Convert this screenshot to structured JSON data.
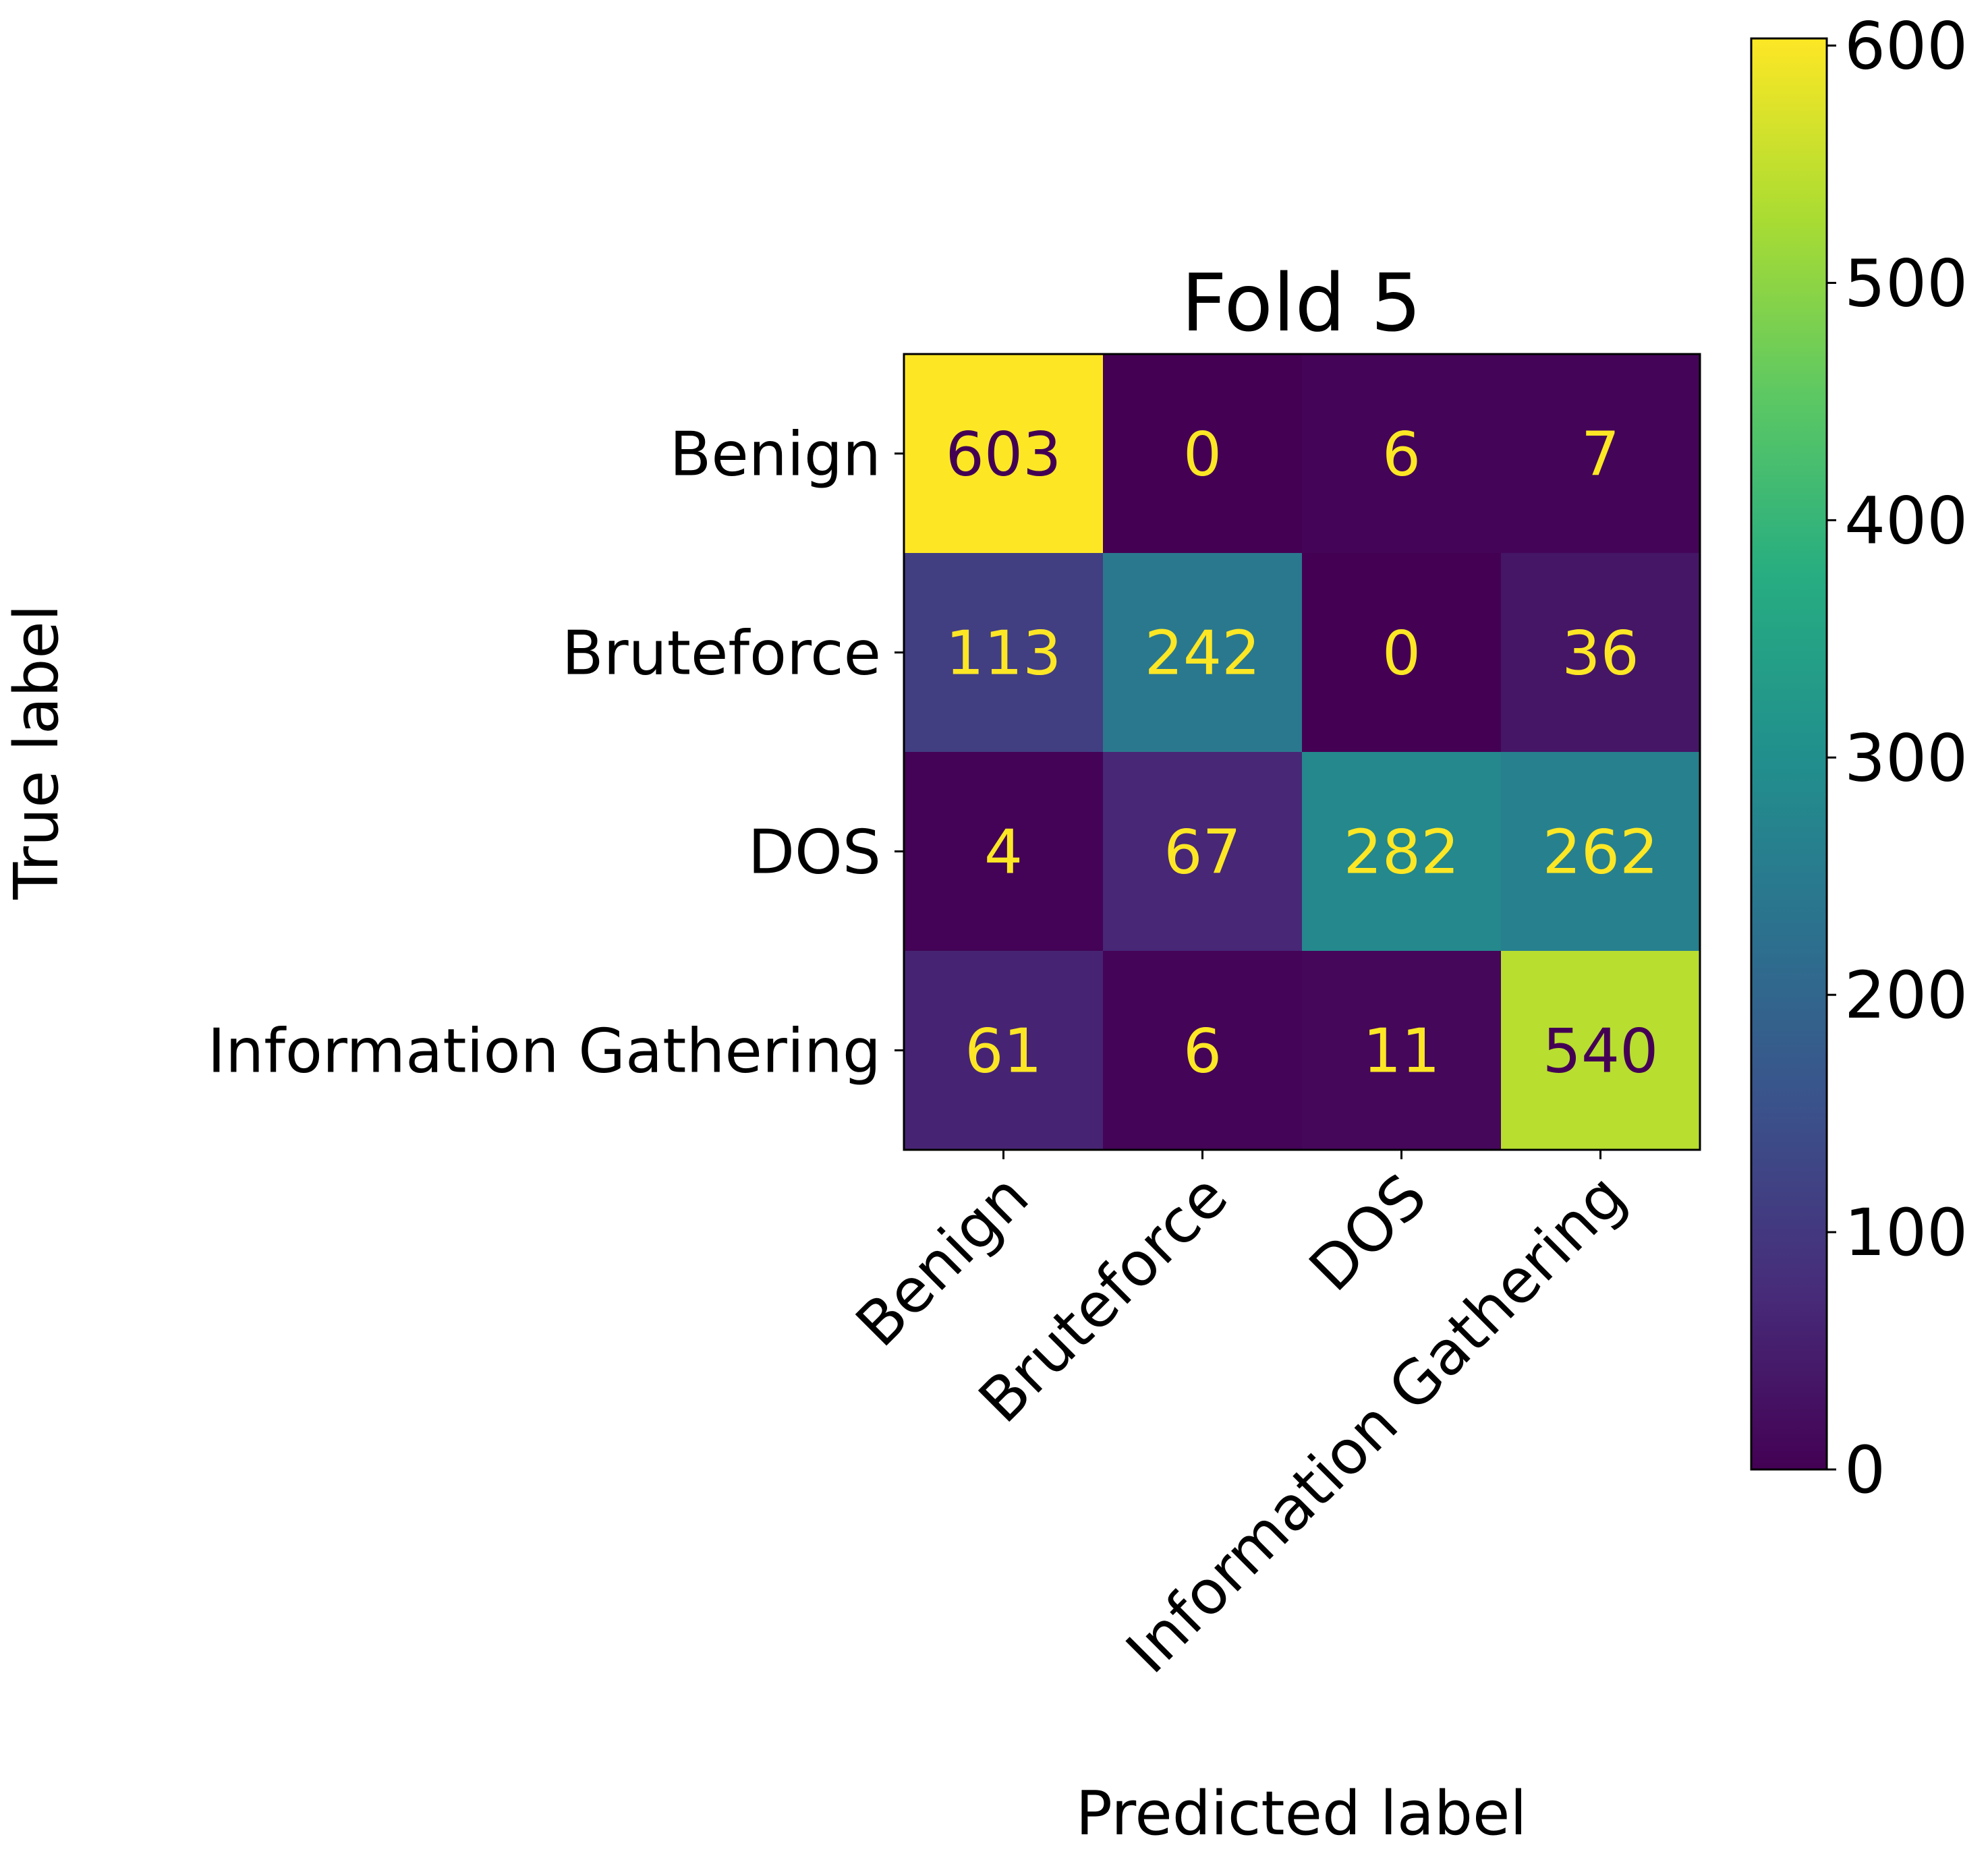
{
  "chart_data": {
    "type": "heatmap",
    "title": "Fold 5",
    "xlabel": "Predicted label",
    "ylabel": "True label",
    "x_categories": [
      "Benign",
      "Bruteforce",
      "DOS",
      "Information Gathering"
    ],
    "y_categories": [
      "Benign",
      "Bruteforce",
      "DOS",
      "Information Gathering"
    ],
    "values": [
      [
        603,
        0,
        6,
        7
      ],
      [
        113,
        242,
        0,
        36
      ],
      [
        4,
        67,
        282,
        262
      ],
      [
        61,
        6,
        11,
        540
      ]
    ],
    "colormap": "viridis",
    "colorbar": {
      "range": [
        0,
        603
      ],
      "ticks": [
        0,
        100,
        200,
        300,
        400,
        500,
        600
      ],
      "tick_labels": [
        "0",
        "100",
        "200",
        "300",
        "400",
        "500",
        "600"
      ]
    },
    "annotation_colors": {
      "light": "#fde725",
      "dark": "#440154"
    },
    "grid": false
  }
}
